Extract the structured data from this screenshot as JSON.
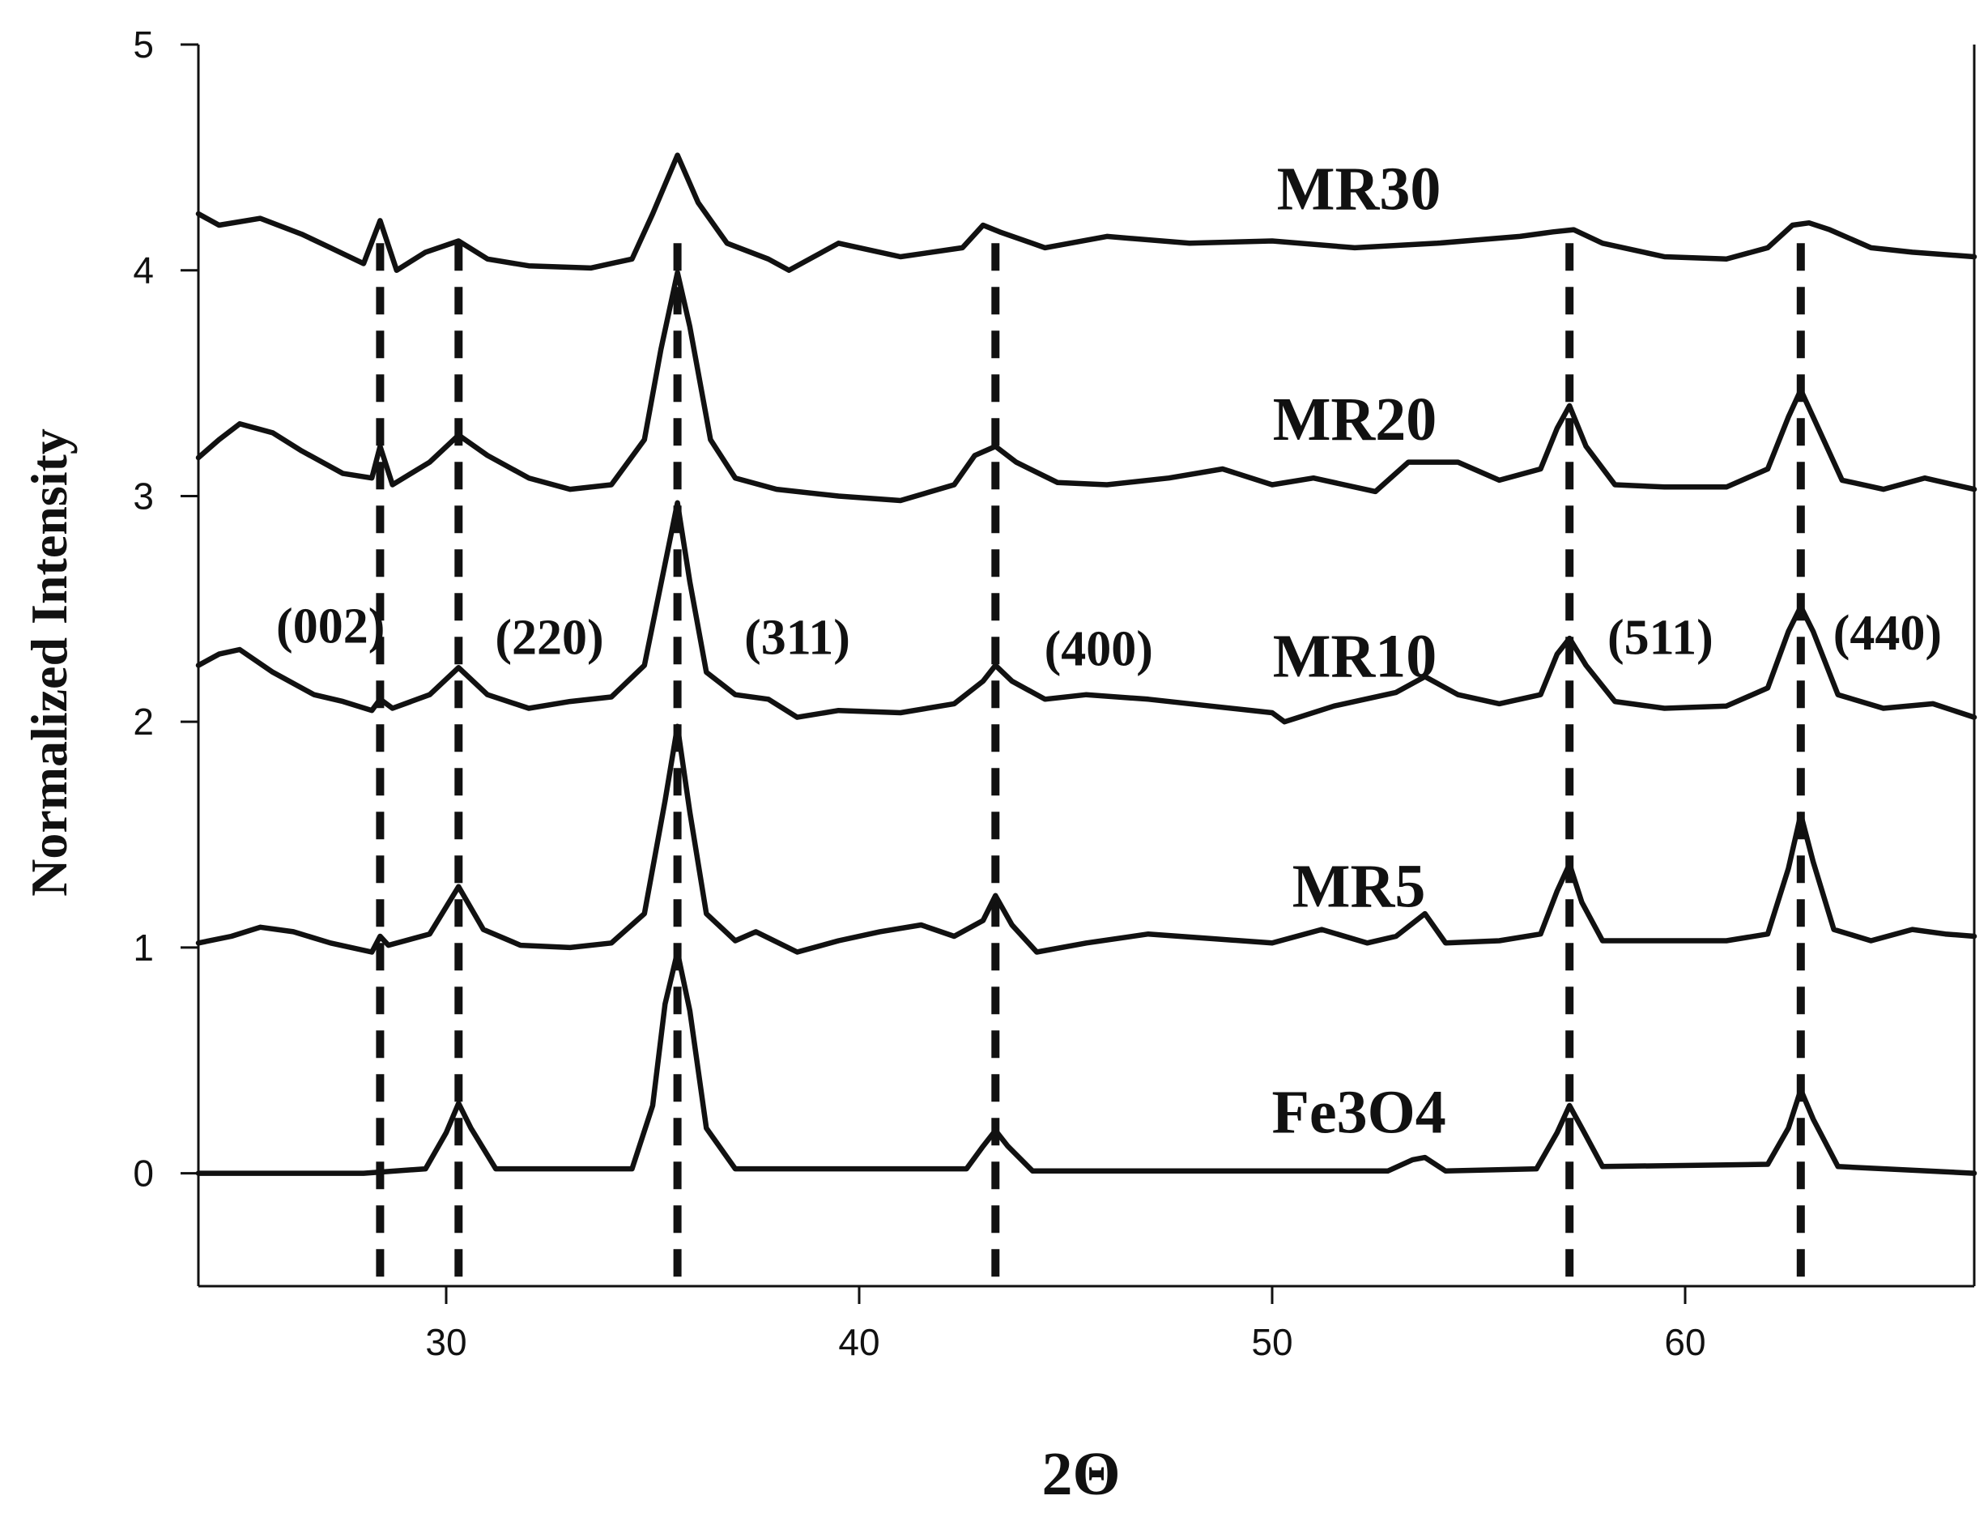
{
  "chart_data": {
    "type": "line",
    "xlabel": "2Θ",
    "ylabel": "Normalized Intensity",
    "xlim": [
      24,
      67
    ],
    "ylim": [
      -0.5,
      5
    ],
    "x_ticks": [
      "30",
      "40",
      "50",
      "60"
    ],
    "y_ticks": [
      "0",
      "1",
      "2",
      "3",
      "4",
      "5"
    ],
    "grid": false,
    "reference_lines_x": [
      28.4,
      30.3,
      35.6,
      43.3,
      57.2,
      62.8
    ],
    "peak_labels": [
      {
        "text": "(002)",
        "x": 27.2,
        "y": 2.35
      },
      {
        "text": "(220)",
        "x": 32.5,
        "y": 2.3
      },
      {
        "text": "(311)",
        "x": 38.5,
        "y": 2.3
      },
      {
        "text": "(400)",
        "x": 45.8,
        "y": 2.25
      },
      {
        "text": "(511)",
        "x": 59.4,
        "y": 2.3
      },
      {
        "text": "(440)",
        "x": 64.9,
        "y": 2.32
      }
    ],
    "series": [
      {
        "name": "Fe3O4",
        "label_pos": {
          "x": 52.1,
          "y": 0.18
        },
        "values": [
          [
            24.0,
            0.0
          ],
          [
            28.0,
            0.0
          ],
          [
            29.5,
            0.02
          ],
          [
            30.0,
            0.18
          ],
          [
            30.3,
            0.31
          ],
          [
            30.6,
            0.2
          ],
          [
            31.2,
            0.02
          ],
          [
            34.5,
            0.02
          ],
          [
            35.0,
            0.3
          ],
          [
            35.3,
            0.75
          ],
          [
            35.6,
            0.98
          ],
          [
            35.9,
            0.72
          ],
          [
            36.3,
            0.2
          ],
          [
            37.0,
            0.02
          ],
          [
            42.6,
            0.02
          ],
          [
            43.0,
            0.12
          ],
          [
            43.3,
            0.19
          ],
          [
            43.6,
            0.12
          ],
          [
            44.2,
            0.01
          ],
          [
            52.8,
            0.01
          ],
          [
            53.4,
            0.06
          ],
          [
            53.7,
            0.07
          ],
          [
            54.2,
            0.01
          ],
          [
            56.4,
            0.02
          ],
          [
            56.9,
            0.18
          ],
          [
            57.2,
            0.3
          ],
          [
            57.5,
            0.2
          ],
          [
            58.0,
            0.03
          ],
          [
            62.0,
            0.04
          ],
          [
            62.5,
            0.2
          ],
          [
            62.8,
            0.37
          ],
          [
            63.1,
            0.24
          ],
          [
            63.7,
            0.03
          ],
          [
            67.0,
            0.0
          ]
        ]
      },
      {
        "name": "MR5",
        "label_pos": {
          "x": 52.1,
          "y": 1.18
        },
        "values": [
          [
            24.0,
            1.02
          ],
          [
            24.8,
            1.05
          ],
          [
            25.5,
            1.09
          ],
          [
            26.3,
            1.07
          ],
          [
            27.2,
            1.02
          ],
          [
            28.2,
            0.98
          ],
          [
            28.4,
            1.05
          ],
          [
            28.6,
            1.01
          ],
          [
            29.6,
            1.06
          ],
          [
            30.3,
            1.27
          ],
          [
            30.9,
            1.08
          ],
          [
            31.8,
            1.01
          ],
          [
            33.0,
            1.0
          ],
          [
            34.0,
            1.02
          ],
          [
            34.8,
            1.15
          ],
          [
            35.3,
            1.65
          ],
          [
            35.6,
            1.98
          ],
          [
            35.9,
            1.6
          ],
          [
            36.3,
            1.15
          ],
          [
            37.0,
            1.03
          ],
          [
            37.5,
            1.07
          ],
          [
            38.5,
            0.98
          ],
          [
            39.5,
            1.03
          ],
          [
            40.5,
            1.07
          ],
          [
            41.5,
            1.1
          ],
          [
            42.3,
            1.05
          ],
          [
            43.0,
            1.12
          ],
          [
            43.3,
            1.23
          ],
          [
            43.7,
            1.1
          ],
          [
            44.3,
            0.98
          ],
          [
            45.5,
            1.02
          ],
          [
            47.0,
            1.06
          ],
          [
            48.5,
            1.04
          ],
          [
            50.0,
            1.02
          ],
          [
            51.2,
            1.08
          ],
          [
            52.3,
            1.02
          ],
          [
            53.0,
            1.05
          ],
          [
            53.7,
            1.15
          ],
          [
            54.2,
            1.02
          ],
          [
            55.5,
            1.03
          ],
          [
            56.5,
            1.06
          ],
          [
            56.9,
            1.25
          ],
          [
            57.2,
            1.37
          ],
          [
            57.5,
            1.2
          ],
          [
            58.0,
            1.03
          ],
          [
            59.5,
            1.03
          ],
          [
            61.0,
            1.03
          ],
          [
            62.0,
            1.06
          ],
          [
            62.5,
            1.35
          ],
          [
            62.8,
            1.59
          ],
          [
            63.1,
            1.38
          ],
          [
            63.6,
            1.08
          ],
          [
            64.5,
            1.03
          ],
          [
            65.5,
            1.08
          ],
          [
            66.3,
            1.06
          ],
          [
            67.0,
            1.05
          ]
        ]
      },
      {
        "name": "MR10",
        "label_pos": {
          "x": 52.0,
          "y": 2.2
        },
        "values": [
          [
            24.0,
            2.25
          ],
          [
            24.5,
            2.3
          ],
          [
            25.0,
            2.32
          ],
          [
            25.8,
            2.22
          ],
          [
            26.8,
            2.12
          ],
          [
            27.5,
            2.09
          ],
          [
            28.2,
            2.05
          ],
          [
            28.4,
            2.1
          ],
          [
            28.7,
            2.06
          ],
          [
            29.6,
            2.12
          ],
          [
            30.3,
            2.24
          ],
          [
            31.0,
            2.12
          ],
          [
            32.0,
            2.06
          ],
          [
            33.0,
            2.09
          ],
          [
            34.0,
            2.11
          ],
          [
            34.8,
            2.25
          ],
          [
            35.3,
            2.7
          ],
          [
            35.6,
            2.97
          ],
          [
            35.9,
            2.62
          ],
          [
            36.3,
            2.22
          ],
          [
            37.0,
            2.12
          ],
          [
            37.8,
            2.1
          ],
          [
            38.5,
            2.02
          ],
          [
            39.5,
            2.05
          ],
          [
            41.0,
            2.04
          ],
          [
            42.3,
            2.08
          ],
          [
            43.0,
            2.18
          ],
          [
            43.3,
            2.25
          ],
          [
            43.7,
            2.18
          ],
          [
            44.5,
            2.1
          ],
          [
            45.5,
            2.12
          ],
          [
            47.0,
            2.1
          ],
          [
            48.5,
            2.07
          ],
          [
            50.0,
            2.04
          ],
          [
            50.3,
            2.0
          ],
          [
            51.5,
            2.07
          ],
          [
            53.0,
            2.13
          ],
          [
            53.7,
            2.2
          ],
          [
            54.5,
            2.12
          ],
          [
            55.5,
            2.08
          ],
          [
            56.5,
            2.12
          ],
          [
            56.9,
            2.3
          ],
          [
            57.2,
            2.37
          ],
          [
            57.6,
            2.25
          ],
          [
            58.3,
            2.09
          ],
          [
            59.5,
            2.06
          ],
          [
            61.0,
            2.07
          ],
          [
            62.0,
            2.15
          ],
          [
            62.5,
            2.4
          ],
          [
            62.8,
            2.51
          ],
          [
            63.1,
            2.4
          ],
          [
            63.7,
            2.12
          ],
          [
            64.8,
            2.06
          ],
          [
            66.0,
            2.08
          ],
          [
            67.0,
            2.02
          ]
        ]
      },
      {
        "name": "MR20",
        "label_pos": {
          "x": 52.0,
          "y": 3.25
        },
        "values": [
          [
            24.0,
            3.17
          ],
          [
            24.5,
            3.25
          ],
          [
            25.0,
            3.32
          ],
          [
            25.8,
            3.28
          ],
          [
            26.5,
            3.2
          ],
          [
            27.5,
            3.1
          ],
          [
            28.2,
            3.08
          ],
          [
            28.4,
            3.22
          ],
          [
            28.7,
            3.05
          ],
          [
            29.6,
            3.15
          ],
          [
            30.3,
            3.27
          ],
          [
            31.0,
            3.18
          ],
          [
            32.0,
            3.08
          ],
          [
            33.0,
            3.03
          ],
          [
            34.0,
            3.05
          ],
          [
            34.8,
            3.25
          ],
          [
            35.2,
            3.65
          ],
          [
            35.6,
            3.99
          ],
          [
            35.9,
            3.75
          ],
          [
            36.4,
            3.25
          ],
          [
            37.0,
            3.08
          ],
          [
            38.0,
            3.03
          ],
          [
            39.5,
            3.0
          ],
          [
            41.0,
            2.98
          ],
          [
            42.3,
            3.05
          ],
          [
            42.8,
            3.18
          ],
          [
            43.3,
            3.22
          ],
          [
            43.8,
            3.15
          ],
          [
            44.8,
            3.06
          ],
          [
            46.0,
            3.05
          ],
          [
            47.5,
            3.08
          ],
          [
            48.8,
            3.12
          ],
          [
            50.0,
            3.05
          ],
          [
            51.0,
            3.08
          ],
          [
            52.5,
            3.02
          ],
          [
            53.3,
            3.15
          ],
          [
            54.5,
            3.15
          ],
          [
            55.5,
            3.07
          ],
          [
            56.5,
            3.12
          ],
          [
            56.9,
            3.3
          ],
          [
            57.2,
            3.4
          ],
          [
            57.6,
            3.22
          ],
          [
            58.3,
            3.05
          ],
          [
            59.5,
            3.04
          ],
          [
            61.0,
            3.04
          ],
          [
            62.0,
            3.12
          ],
          [
            62.5,
            3.35
          ],
          [
            62.8,
            3.47
          ],
          [
            63.1,
            3.35
          ],
          [
            63.8,
            3.07
          ],
          [
            64.8,
            3.03
          ],
          [
            65.8,
            3.08
          ],
          [
            67.0,
            3.03
          ]
        ]
      },
      {
        "name": "MR30",
        "label_pos": {
          "x": 52.1,
          "y": 4.27
        },
        "values": [
          [
            24.0,
            4.25
          ],
          [
            24.5,
            4.2
          ],
          [
            25.5,
            4.23
          ],
          [
            26.5,
            4.16
          ],
          [
            27.2,
            4.1
          ],
          [
            28.0,
            4.03
          ],
          [
            28.4,
            4.22
          ],
          [
            28.8,
            4.0
          ],
          [
            29.5,
            4.08
          ],
          [
            30.3,
            4.13
          ],
          [
            31.0,
            4.05
          ],
          [
            32.0,
            4.02
          ],
          [
            33.5,
            4.01
          ],
          [
            34.5,
            4.05
          ],
          [
            35.0,
            4.25
          ],
          [
            35.6,
            4.51
          ],
          [
            36.1,
            4.3
          ],
          [
            36.8,
            4.12
          ],
          [
            37.8,
            4.05
          ],
          [
            38.3,
            4.0
          ],
          [
            39.5,
            4.12
          ],
          [
            41.0,
            4.06
          ],
          [
            42.5,
            4.1
          ],
          [
            43.0,
            4.2
          ],
          [
            43.4,
            4.17
          ],
          [
            44.5,
            4.1
          ],
          [
            46.0,
            4.15
          ],
          [
            48.0,
            4.12
          ],
          [
            50.0,
            4.13
          ],
          [
            52.0,
            4.1
          ],
          [
            54.0,
            4.12
          ],
          [
            56.0,
            4.15
          ],
          [
            56.8,
            4.17
          ],
          [
            57.3,
            4.18
          ],
          [
            58.0,
            4.12
          ],
          [
            59.5,
            4.06
          ],
          [
            61.0,
            4.05
          ],
          [
            62.0,
            4.1
          ],
          [
            62.6,
            4.2
          ],
          [
            63.0,
            4.21
          ],
          [
            63.5,
            4.18
          ],
          [
            64.5,
            4.1
          ],
          [
            65.5,
            4.08
          ],
          [
            67.0,
            4.06
          ]
        ]
      }
    ]
  }
}
